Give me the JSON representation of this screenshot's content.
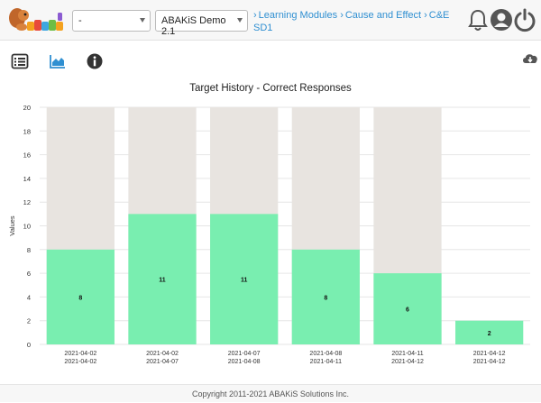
{
  "header": {
    "user_select_value": "-",
    "org_select_value": "ABAKiS Demo 2.1",
    "breadcrumb": [
      {
        "label": "Learning Modules"
      },
      {
        "label": "Cause and Effect"
      },
      {
        "label": "C&E SD1"
      }
    ]
  },
  "chart_data": {
    "type": "bar",
    "title": "Target History - Correct Responses",
    "ylabel": "Values",
    "xlabel": "",
    "ylim": [
      0,
      20
    ],
    "yticks": [
      0,
      2,
      4,
      6,
      8,
      10,
      12,
      14,
      16,
      18,
      20
    ],
    "categories": [
      [
        "2021-04-02",
        "2021-04-02"
      ],
      [
        "2021-04-02",
        "2021-04-07"
      ],
      [
        "2021-04-07",
        "2021-04-08"
      ],
      [
        "2021-04-08",
        "2021-04-11"
      ],
      [
        "2021-04-11",
        "2021-04-12"
      ],
      [
        "2021-04-12",
        "2021-04-12"
      ]
    ],
    "series": [
      {
        "values": [
          8,
          11,
          11,
          8,
          6,
          2
        ],
        "color": "#79eeb0"
      },
      {
        "values": [
          20,
          20,
          20,
          20,
          20,
          null
        ],
        "color": "#e8e4e0"
      }
    ],
    "grid": true
  },
  "footer": {
    "copyright": "Copyright 2011-2021 ABAKiS Solutions Inc."
  },
  "colors": {
    "accent": "#2f8fd1",
    "bar_correct": "#79eeb0",
    "bar_total": "#e8e4e0",
    "icon_dark": "#444444"
  }
}
